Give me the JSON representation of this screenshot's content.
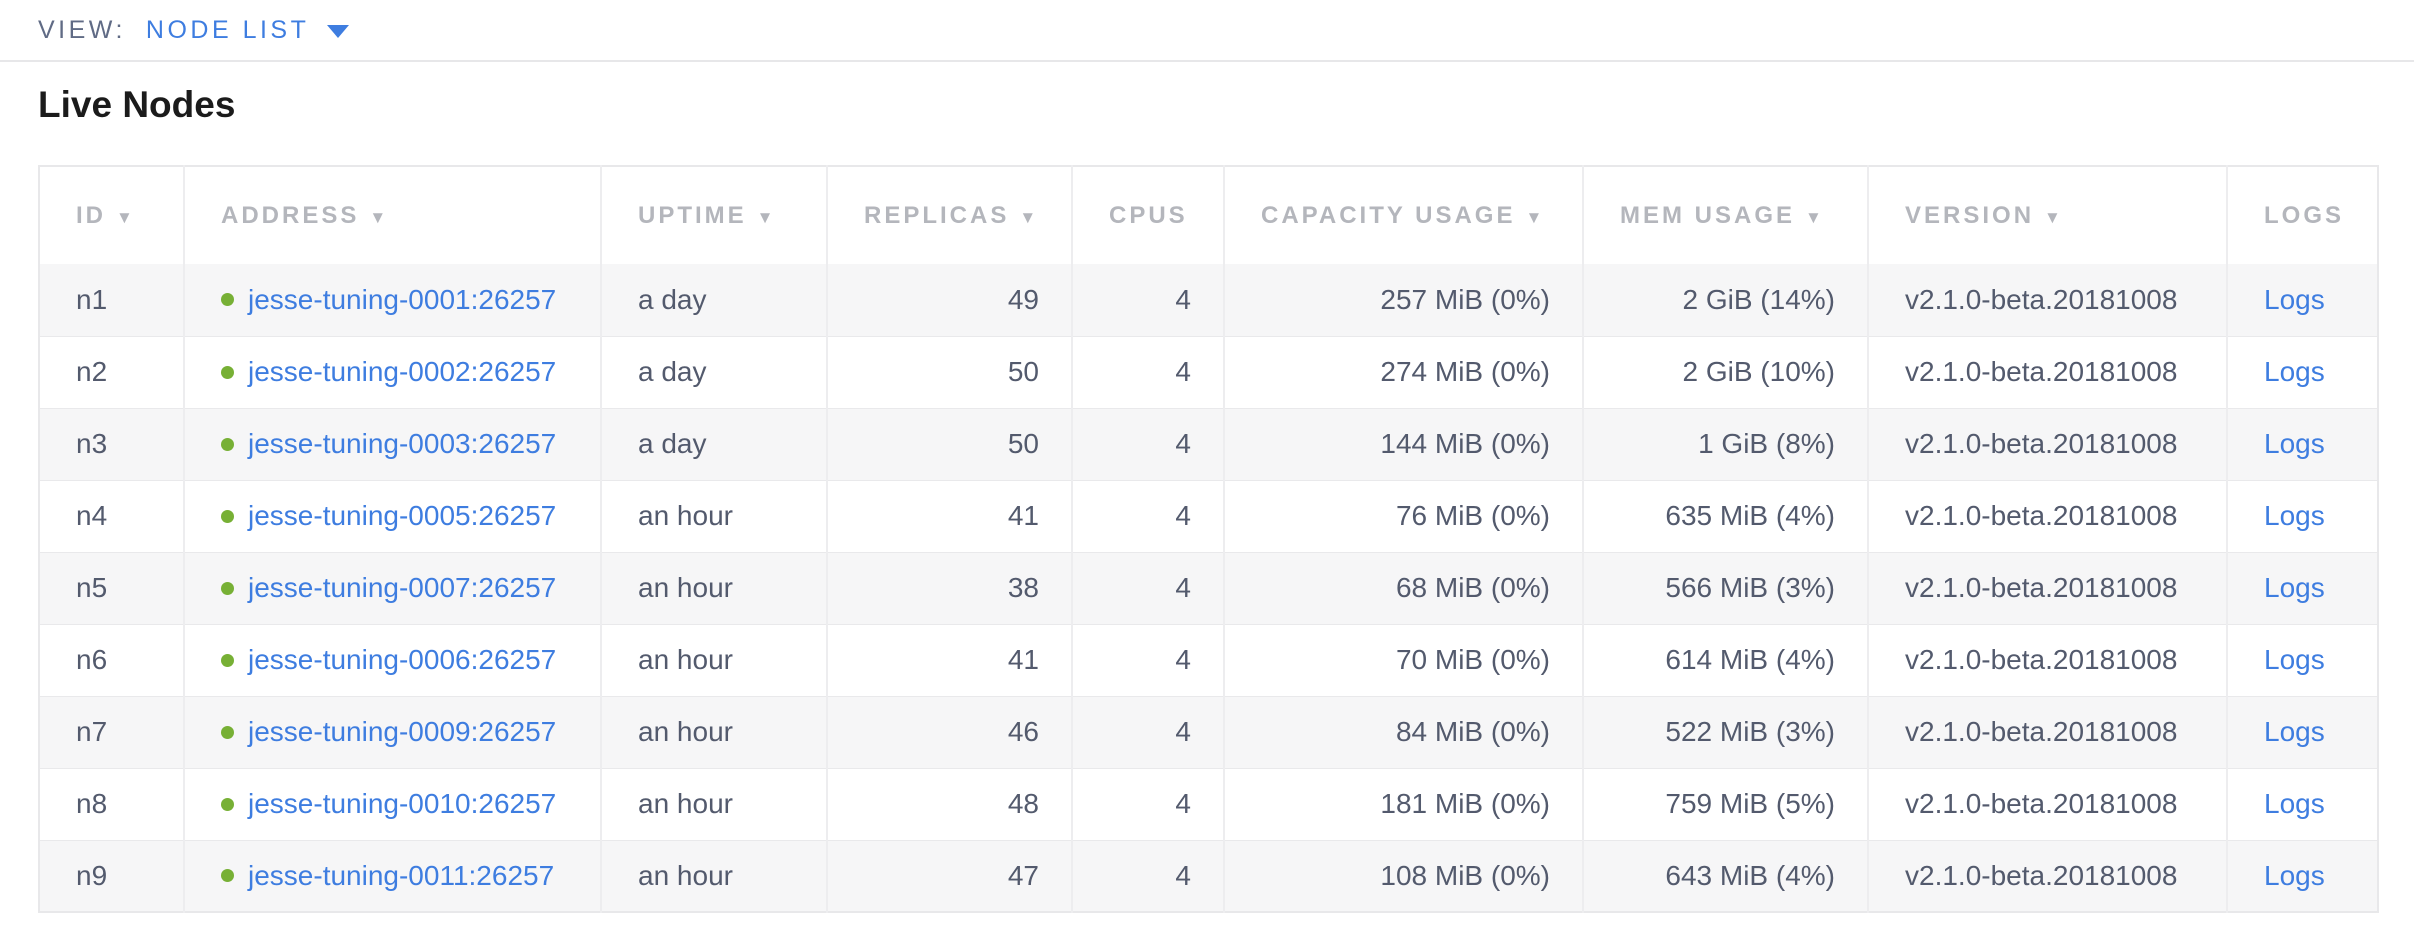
{
  "view_bar": {
    "label": "VIEW:",
    "selected": "NODE LIST"
  },
  "page": {
    "title": "Live Nodes"
  },
  "colors": {
    "accent_blue": "#3e7de0",
    "link_blue": "#3e7de0",
    "healthy_green": "#77b035",
    "header_gray": "#b4b6bc",
    "cell_text": "#535a6d",
    "row_stripe": "#f6f6f7"
  },
  "table": {
    "columns": [
      {
        "key": "id",
        "label": "ID",
        "sortable": true,
        "numeric": false
      },
      {
        "key": "address",
        "label": "ADDRESS",
        "sortable": true,
        "numeric": false
      },
      {
        "key": "uptime",
        "label": "UPTIME",
        "sortable": true,
        "numeric": false
      },
      {
        "key": "replicas",
        "label": "REPLICAS",
        "sortable": true,
        "numeric": true
      },
      {
        "key": "cpus",
        "label": "CPUS",
        "sortable": false,
        "numeric": true
      },
      {
        "key": "capacity",
        "label": "CAPACITY USAGE",
        "sortable": true,
        "numeric": true
      },
      {
        "key": "mem",
        "label": "MEM USAGE",
        "sortable": true,
        "numeric": true
      },
      {
        "key": "version",
        "label": "VERSION",
        "sortable": true,
        "numeric": false
      },
      {
        "key": "logs",
        "label": "LOGS",
        "sortable": false,
        "numeric": false
      }
    ],
    "sort_arrow": "▼",
    "rows": [
      {
        "id": "n1",
        "status": "healthy",
        "address": "jesse-tuning-0001:26257",
        "uptime": "a day",
        "replicas": "49",
        "cpus": "4",
        "capacity": "257 MiB (0%)",
        "mem": "2 GiB (14%)",
        "version": "v2.1.0-beta.20181008",
        "logs": "Logs"
      },
      {
        "id": "n2",
        "status": "healthy",
        "address": "jesse-tuning-0002:26257",
        "uptime": "a day",
        "replicas": "50",
        "cpus": "4",
        "capacity": "274 MiB (0%)",
        "mem": "2 GiB (10%)",
        "version": "v2.1.0-beta.20181008",
        "logs": "Logs"
      },
      {
        "id": "n3",
        "status": "healthy",
        "address": "jesse-tuning-0003:26257",
        "uptime": "a day",
        "replicas": "50",
        "cpus": "4",
        "capacity": "144 MiB (0%)",
        "mem": "1 GiB (8%)",
        "version": "v2.1.0-beta.20181008",
        "logs": "Logs"
      },
      {
        "id": "n4",
        "status": "healthy",
        "address": "jesse-tuning-0005:26257",
        "uptime": "an hour",
        "replicas": "41",
        "cpus": "4",
        "capacity": "76 MiB (0%)",
        "mem": "635 MiB (4%)",
        "version": "v2.1.0-beta.20181008",
        "logs": "Logs"
      },
      {
        "id": "n5",
        "status": "healthy",
        "address": "jesse-tuning-0007:26257",
        "uptime": "an hour",
        "replicas": "38",
        "cpus": "4",
        "capacity": "68 MiB (0%)",
        "mem": "566 MiB (3%)",
        "version": "v2.1.0-beta.20181008",
        "logs": "Logs"
      },
      {
        "id": "n6",
        "status": "healthy",
        "address": "jesse-tuning-0006:26257",
        "uptime": "an hour",
        "replicas": "41",
        "cpus": "4",
        "capacity": "70 MiB (0%)",
        "mem": "614 MiB (4%)",
        "version": "v2.1.0-beta.20181008",
        "logs": "Logs"
      },
      {
        "id": "n7",
        "status": "healthy",
        "address": "jesse-tuning-0009:26257",
        "uptime": "an hour",
        "replicas": "46",
        "cpus": "4",
        "capacity": "84 MiB (0%)",
        "mem": "522 MiB (3%)",
        "version": "v2.1.0-beta.20181008",
        "logs": "Logs"
      },
      {
        "id": "n8",
        "status": "healthy",
        "address": "jesse-tuning-0010:26257",
        "uptime": "an hour",
        "replicas": "48",
        "cpus": "4",
        "capacity": "181 MiB (0%)",
        "mem": "759 MiB (5%)",
        "version": "v2.1.0-beta.20181008",
        "logs": "Logs"
      },
      {
        "id": "n9",
        "status": "healthy",
        "address": "jesse-tuning-0011:26257",
        "uptime": "an hour",
        "replicas": "47",
        "cpus": "4",
        "capacity": "108 MiB (0%)",
        "mem": "643 MiB (4%)",
        "version": "v2.1.0-beta.20181008",
        "logs": "Logs"
      }
    ]
  }
}
